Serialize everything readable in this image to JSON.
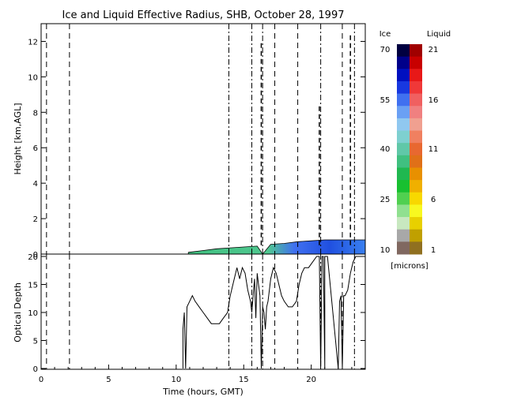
{
  "title": "Ice and Liquid Effective Radius, SHB, October 28, 1997",
  "chart_data": [
    {
      "type": "area",
      "panel": "effective-radius",
      "ylabel": "Height [km,AGL]",
      "xlim": [
        0,
        24
      ],
      "ylim": [
        0,
        13
      ],
      "y_ticks": [
        0,
        2,
        4,
        6,
        8,
        10,
        12
      ],
      "cloud_layer": [
        {
          "t": 10.9,
          "base": 0.0,
          "top": 0.1
        },
        {
          "t": 12.0,
          "base": 0.0,
          "top": 0.2
        },
        {
          "t": 13.0,
          "base": 0.0,
          "top": 0.3
        },
        {
          "t": 14.0,
          "base": 0.0,
          "top": 0.35
        },
        {
          "t": 15.0,
          "base": 0.0,
          "top": 0.4
        },
        {
          "t": 16.0,
          "base": 0.0,
          "top": 0.45
        },
        {
          "t": 16.4,
          "base": 0.0,
          "top": 0.0
        },
        {
          "t": 17.0,
          "base": 0.0,
          "top": 0.55
        },
        {
          "t": 18.0,
          "base": 0.0,
          "top": 0.6
        },
        {
          "t": 19.0,
          "base": 0.0,
          "top": 0.7
        },
        {
          "t": 20.0,
          "base": 0.0,
          "top": 0.75
        },
        {
          "t": 21.0,
          "base": 0.0,
          "top": 0.8
        },
        {
          "t": 22.0,
          "base": 0.0,
          "top": 0.8
        },
        {
          "t": 23.0,
          "base": 0.0,
          "top": 0.8
        },
        {
          "t": 24.0,
          "base": 0.0,
          "top": 0.8
        }
      ],
      "ice_streaks": [
        {
          "t": 16.3,
          "from": 0.5,
          "to": 12.0
        },
        {
          "t": 20.6,
          "from": 0.5,
          "to": 8.4
        },
        {
          "t": 22.9,
          "from": 0.5,
          "to": 12.4
        }
      ]
    },
    {
      "type": "line",
      "panel": "optical-depth",
      "xlabel": "Time (hours, GMT)",
      "ylabel": "Optical Depth",
      "xlim": [
        0,
        24
      ],
      "ylim": [
        0,
        20
      ],
      "x_ticks": [
        0,
        5,
        10,
        15,
        20
      ],
      "y_ticks": [
        0,
        5,
        10,
        15,
        20
      ],
      "series": [
        {
          "x": [
            10.5,
            10.5,
            10.6,
            10.7,
            10.8,
            11.0,
            11.2,
            11.4,
            11.7,
            12.0,
            12.3,
            12.6,
            12.9,
            13.2,
            13.5,
            13.8,
            14.0,
            14.2,
            14.4,
            14.5,
            14.7,
            14.9,
            15.1,
            15.3,
            15.5,
            15.6,
            15.7,
            15.8,
            15.9,
            16.0,
            16.1,
            16.2,
            16.3,
            16.4,
            16.5,
            16.6,
            16.7,
            16.8,
            16.9,
            17.0,
            17.2,
            17.4,
            17.6,
            17.8,
            18.0,
            18.3,
            18.6,
            18.9,
            19.1,
            19.3,
            19.5,
            19.8,
            20.1,
            20.4,
            20.6,
            20.7,
            20.8,
            20.9,
            21.0,
            21.0,
            21.2,
            22.0,
            22.1,
            22.2,
            22.3,
            22.4,
            22.5,
            22.7,
            22.9,
            23.1,
            23.3,
            23.5,
            23.7,
            23.9
          ],
          "y": [
            0,
            7,
            10,
            0,
            11,
            12,
            13,
            12,
            11,
            10,
            9,
            8,
            8,
            8,
            9,
            10,
            13,
            15,
            17,
            18,
            16,
            18,
            17,
            14,
            12,
            10,
            13,
            16,
            9,
            17,
            15,
            13,
            0,
            11,
            10,
            7,
            11,
            12,
            14,
            16,
            18,
            17,
            15,
            13,
            12,
            11,
            11,
            12,
            15,
            17,
            18,
            18,
            19,
            20,
            20,
            0,
            20,
            20,
            0,
            20,
            20,
            0,
            12,
            13,
            0,
            13,
            13,
            14,
            17,
            19,
            20,
            20,
            20,
            20
          ]
        }
      ]
    }
  ],
  "vertical_markers": [
    {
      "t": 0.4,
      "style": "dash"
    },
    {
      "t": 2.1,
      "style": "dash"
    },
    {
      "t": 13.9,
      "style": "dashdot"
    },
    {
      "t": 15.6,
      "style": "dashdot"
    },
    {
      "t": 16.4,
      "style": "dashdot"
    },
    {
      "t": 17.3,
      "style": "dash"
    },
    {
      "t": 19.0,
      "style": "dash"
    },
    {
      "t": 20.7,
      "style": "dashdot"
    },
    {
      "t": 22.3,
      "style": "dash"
    },
    {
      "t": 23.2,
      "style": "dashdot"
    }
  ],
  "colorbar": {
    "ice_label": "Ice",
    "liquid_label": "Liquid",
    "ice_ticks": [
      "70",
      "55",
      "40",
      "25",
      "10"
    ],
    "liquid_ticks": [
      "21",
      "16",
      "11",
      "6",
      "1"
    ],
    "units": "[microns]",
    "ice_colors": [
      "#000040",
      "#00008a",
      "#0010c0",
      "#1838e0",
      "#4070f0",
      "#6aa0f4",
      "#90c8f0",
      "#7ed0d0",
      "#60c8a8",
      "#40c080",
      "#20b850",
      "#18c030",
      "#50d050",
      "#90e090",
      "#c8e8c0",
      "#a8a8a8",
      "#806860"
    ],
    "liquid_colors": [
      "#a00000",
      "#c80000",
      "#e81818",
      "#f03838",
      "#f06060",
      "#f08080",
      "#f0a090",
      "#f08060",
      "#e86830",
      "#e07018",
      "#e89000",
      "#f0b000",
      "#f8d800",
      "#f8f820",
      "#e8d000",
      "#c0a000",
      "#907020"
    ]
  }
}
